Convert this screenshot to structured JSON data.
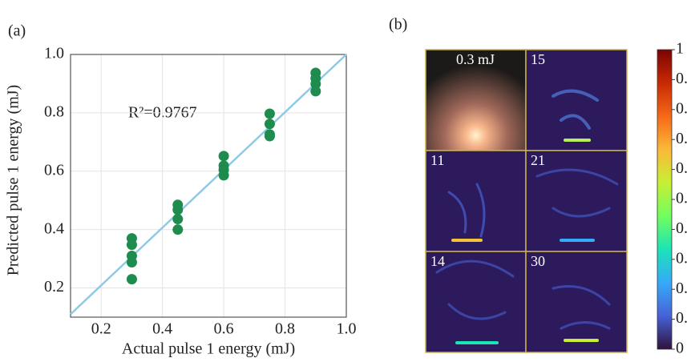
{
  "chart_data": [
    {
      "type": "scatter",
      "panel_label": "(a)",
      "x_label": "Actual pulse 1 energy (mJ)",
      "y_label": "Predicted pulse 1 energy (mJ)",
      "annotation": "R²=0.9767",
      "x": [
        0.3,
        0.3,
        0.3,
        0.3,
        0.3,
        0.45,
        0.45,
        0.45,
        0.45,
        0.6,
        0.6,
        0.6,
        0.6,
        0.75,
        0.75,
        0.75,
        0.75,
        0.9,
        0.9,
        0.9,
        0.9
      ],
      "values": [
        0.37,
        0.348,
        0.31,
        0.288,
        0.23,
        0.485,
        0.468,
        0.436,
        0.4,
        0.652,
        0.619,
        0.605,
        0.586,
        0.797,
        0.762,
        0.726,
        0.72,
        0.937,
        0.918,
        0.899,
        0.874
      ],
      "color": "#1e8c4e",
      "fit_line": {
        "x": [
          0.1,
          1.0
        ],
        "y": [
          0.11,
          1.0
        ],
        "color": "#8ecae6"
      },
      "xlim": [
        0.1,
        1.0
      ],
      "ylim": [
        0.1,
        1.0
      ],
      "xticks": [
        0.2,
        0.4,
        0.6,
        0.8,
        {
          "value": 1.0,
          "label": "1.0"
        }
      ],
      "yticks": [
        0.2,
        0.4,
        0.6,
        0.8,
        {
          "value": 1.0,
          "label": "1.0"
        }
      ],
      "grid": true
    },
    {
      "type": "colorbar",
      "panel_label": "(b)",
      "tiles": [
        "0.3 mJ",
        "15",
        "11",
        "21",
        "14",
        "30"
      ],
      "colors": [
        "#30123b",
        "#4662d7",
        "#36aaf9",
        "#1ae4b6",
        "#72fe5e",
        "#c7ef34",
        "#fbb938",
        "#f56918",
        "#c92903",
        "#7a0403"
      ],
      "ylim": [
        0,
        1
      ],
      "yticks": [
        0,
        0.1,
        0.2,
        0.3,
        0.4,
        0.5,
        0.6,
        0.7,
        0.8,
        0.9,
        1
      ]
    }
  ]
}
